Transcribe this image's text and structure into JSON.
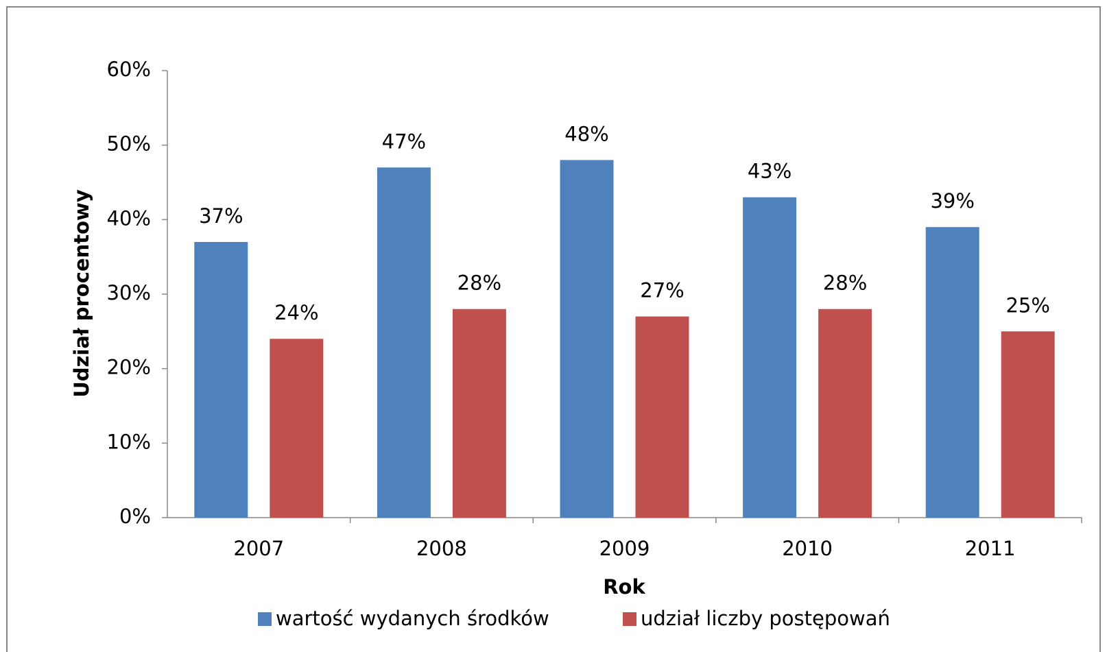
{
  "chart_data": {
    "type": "bar",
    "categories": [
      "2007",
      "2008",
      "2009",
      "2010",
      "2011"
    ],
    "series": [
      {
        "name": "wartość wydanych środków",
        "color": "#4f81bd",
        "values": [
          37,
          47,
          48,
          43,
          39
        ],
        "value_labels": [
          "37%",
          "47%",
          "48%",
          "43%",
          "39%"
        ]
      },
      {
        "name": "udział liczby postępowań",
        "color": "#c0504d",
        "values": [
          24,
          28,
          27,
          28,
          25
        ],
        "value_labels": [
          "24%",
          "28%",
          "27%",
          "28%",
          "25%"
        ]
      }
    ],
    "x_label": "Rok",
    "y_label": "Udział procentowy",
    "ylim": [
      0,
      60
    ],
    "yticks": [
      {
        "value": 0,
        "label": "0%"
      },
      {
        "value": 10,
        "label": "10%"
      },
      {
        "value": 20,
        "label": "20%"
      },
      {
        "value": 30,
        "label": "30%"
      },
      {
        "value": 40,
        "label": "40%"
      },
      {
        "value": 50,
        "label": "50%"
      },
      {
        "value": 60,
        "label": "60%"
      }
    ],
    "grid": false,
    "legend": "bottom"
  }
}
